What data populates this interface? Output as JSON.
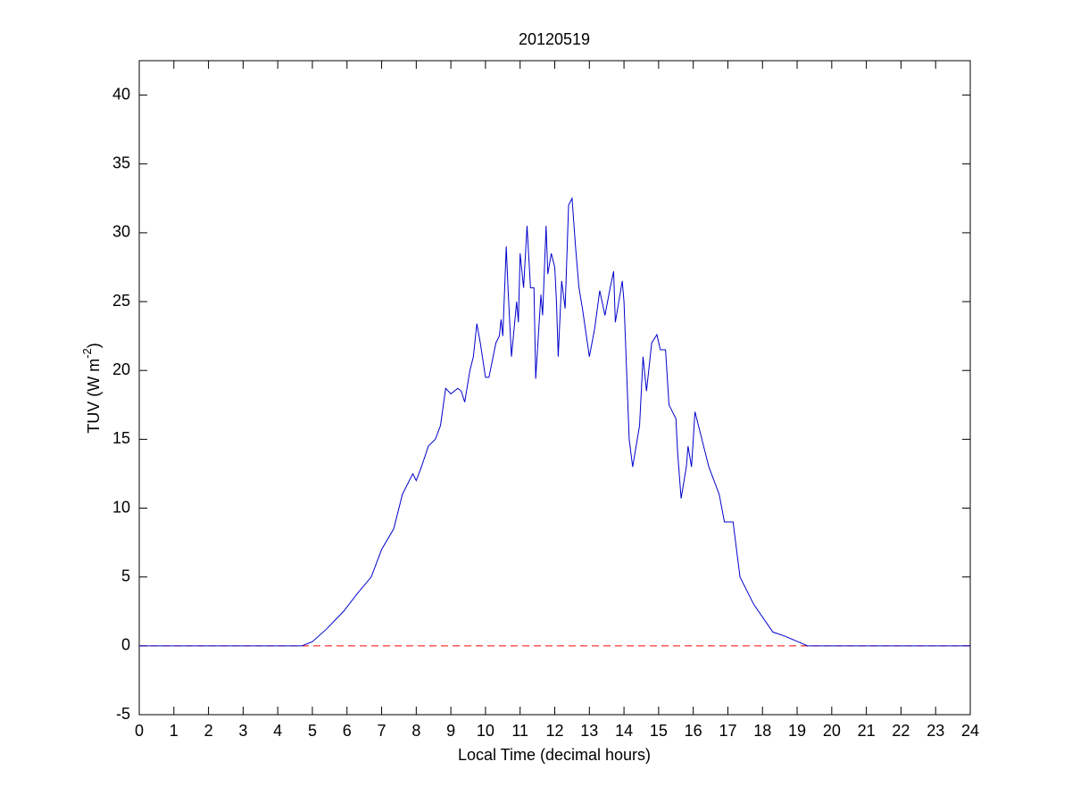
{
  "chart_data": {
    "type": "line",
    "title": "20120519",
    "xlabel": "Local Time (decimal hours)",
    "ylabel": "TUV (W m",
    "ylabel_sup": "-2",
    "ylabel_end": ")",
    "x": [
      0,
      4.7,
      5.0,
      5.4,
      5.9,
      6.3,
      6.7,
      7.0,
      7.35,
      7.6,
      7.9,
      8.0,
      8.15,
      8.35,
      8.55,
      8.7,
      8.85,
      9.0,
      9.2,
      9.3,
      9.4,
      9.55,
      9.65,
      9.75,
      9.85,
      10.0,
      10.1,
      10.3,
      10.4,
      10.45,
      10.5,
      10.6,
      10.65,
      10.75,
      10.9,
      10.95,
      11.0,
      11.1,
      11.2,
      11.3,
      11.4,
      11.45,
      11.6,
      11.65,
      11.75,
      11.8,
      11.9,
      12.0,
      12.05,
      12.1,
      12.2,
      12.3,
      12.4,
      12.5,
      12.6,
      12.7,
      12.8,
      13.0,
      13.15,
      13.3,
      13.45,
      13.6,
      13.7,
      13.75,
      13.95,
      14.0,
      14.15,
      14.25,
      14.45,
      14.55,
      14.65,
      14.8,
      14.95,
      15.05,
      15.2,
      15.3,
      15.5,
      15.55,
      15.65,
      15.8,
      15.85,
      15.95,
      16.05,
      16.2,
      16.45,
      16.75,
      16.9,
      17.15,
      17.35,
      17.75,
      18.3,
      18.65,
      19.3,
      24
    ],
    "series": [
      {
        "color": "#0000cc",
        "values": [
          0,
          0,
          0.3,
          1.2,
          2.5,
          3.8,
          5,
          7,
          8.5,
          11,
          12.5,
          12,
          13,
          14.5,
          15,
          16,
          18.7,
          18.3,
          18.7,
          18.5,
          17.7,
          20,
          21,
          23.4,
          22,
          19.5,
          19.5,
          22,
          22.5,
          23.7,
          22.5,
          29,
          26,
          21,
          25,
          23.5,
          28.5,
          26,
          30.5,
          26,
          26,
          19.4,
          25.5,
          24,
          30.5,
          27,
          28.5,
          27.5,
          25,
          21,
          26.5,
          24.5,
          32,
          32.5,
          29,
          26,
          24.5,
          21,
          23,
          25.8,
          24,
          26,
          27.2,
          23.5,
          26.5,
          25,
          15,
          13,
          16,
          21,
          18.5,
          22,
          22.6,
          21.5,
          21.5,
          17.5,
          16.5,
          14,
          10.7,
          13,
          14.5,
          13,
          17,
          15.5,
          13,
          11,
          9,
          9,
          5,
          3,
          1,
          0.7,
          0,
          0
        ]
      }
    ],
    "reference_line": {
      "value": 0,
      "color": "#ff0000",
      "dashed": true
    },
    "xlim": [
      0,
      24
    ],
    "xticks": [
      0,
      1,
      2,
      3,
      4,
      5,
      6,
      7,
      8,
      9,
      10,
      11,
      12,
      13,
      14,
      15,
      16,
      17,
      18,
      19,
      20,
      21,
      22,
      23,
      24
    ],
    "ylim": [
      -5,
      42.5
    ],
    "yticks": [
      -5,
      0,
      5,
      10,
      15,
      20,
      25,
      30,
      35,
      40
    ]
  }
}
